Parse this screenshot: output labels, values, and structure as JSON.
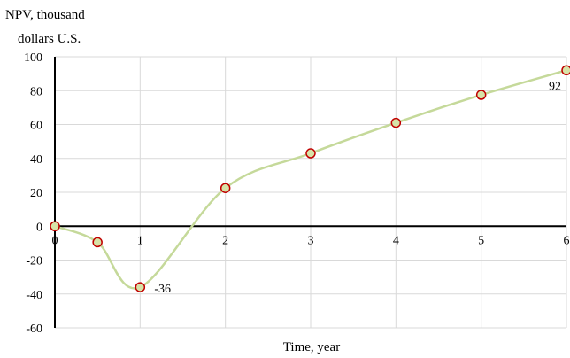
{
  "chart_data": {
    "type": "line",
    "title": "",
    "ylabel_line1": "NPV, thousand",
    "ylabel_line2": "dollars U.S.",
    "xlabel": "Time, year",
    "xlim": [
      0,
      6
    ],
    "ylim": [
      -60,
      100
    ],
    "x_ticks": [
      0,
      1,
      2,
      3,
      4,
      5,
      6
    ],
    "y_ticks": [
      100,
      80,
      60,
      40,
      20,
      0,
      -20,
      -40,
      -60
    ],
    "grid": true,
    "series": [
      {
        "x": [
          0,
          0.5,
          1,
          2,
          3,
          4,
          5,
          6
        ],
        "y": [
          0,
          -9.5,
          -36,
          22.5,
          43,
          61,
          77.5,
          92
        ],
        "line_color": "#c5d99a",
        "marker_fill": "#d7e3a8",
        "marker_edge": "#c00000"
      }
    ],
    "annotations": [
      {
        "x": 1,
        "y": -36,
        "text": "-36"
      },
      {
        "x": 6,
        "y": 92,
        "text": "92"
      }
    ]
  }
}
